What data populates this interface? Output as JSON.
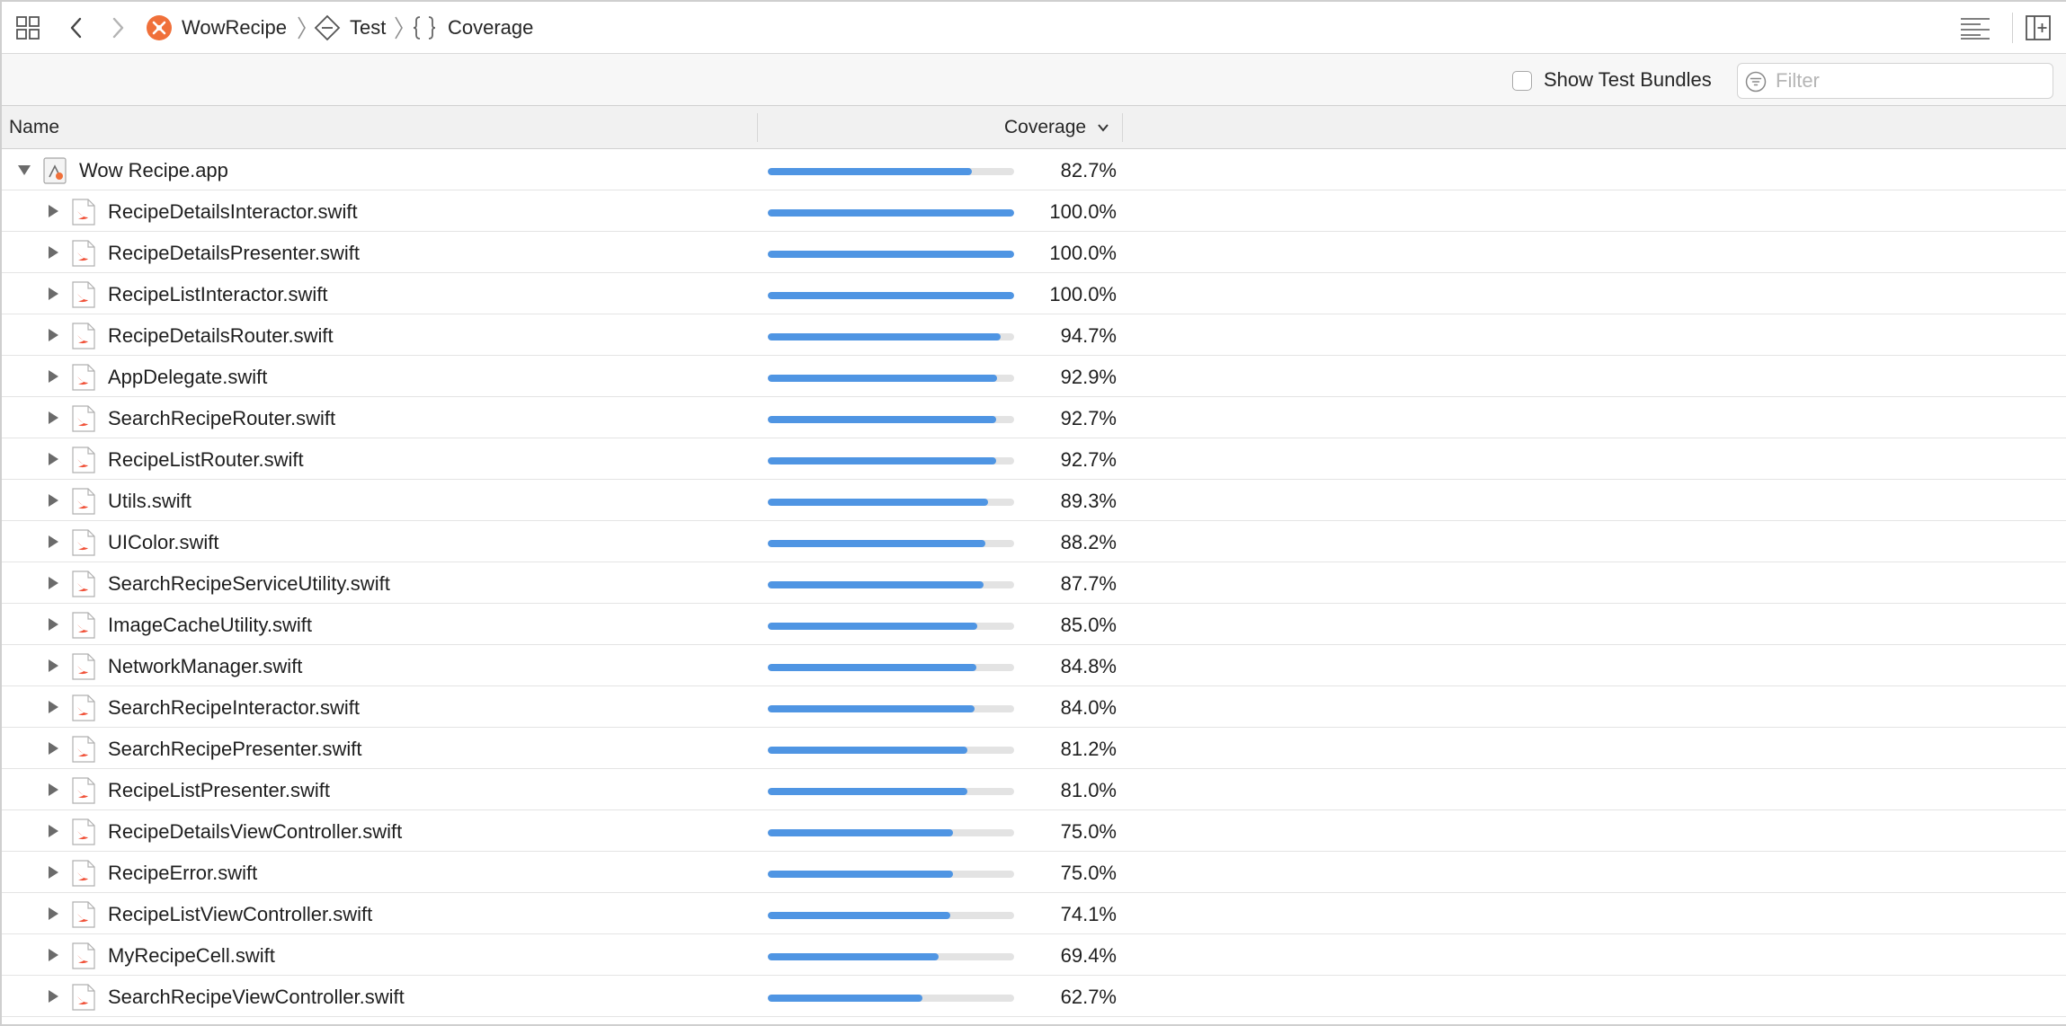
{
  "breadcrumb": {
    "project": "WowRecipe",
    "scheme": "Test",
    "report": "Coverage"
  },
  "filterbar": {
    "show_test_bundles_label": "Show Test Bundles",
    "show_test_bundles_checked": false,
    "filter_placeholder": "Filter"
  },
  "table": {
    "columns": {
      "name": "Name",
      "coverage": "Coverage"
    },
    "target": {
      "name": "Wow Recipe.app",
      "coverage": "82.7%",
      "fraction": 0.827
    },
    "files": [
      {
        "name": "RecipeDetailsInteractor.swift",
        "coverage": "100.0%",
        "fraction": 1.0
      },
      {
        "name": "RecipeDetailsPresenter.swift",
        "coverage": "100.0%",
        "fraction": 1.0
      },
      {
        "name": "RecipeListInteractor.swift",
        "coverage": "100.0%",
        "fraction": 1.0
      },
      {
        "name": "RecipeDetailsRouter.swift",
        "coverage": "94.7%",
        "fraction": 0.947
      },
      {
        "name": "AppDelegate.swift",
        "coverage": "92.9%",
        "fraction": 0.929
      },
      {
        "name": "SearchRecipeRouter.swift",
        "coverage": "92.7%",
        "fraction": 0.927
      },
      {
        "name": "RecipeListRouter.swift",
        "coverage": "92.7%",
        "fraction": 0.927
      },
      {
        "name": "Utils.swift",
        "coverage": "89.3%",
        "fraction": 0.893
      },
      {
        "name": "UIColor.swift",
        "coverage": "88.2%",
        "fraction": 0.882
      },
      {
        "name": "SearchRecipeServiceUtility.swift",
        "coverage": "87.7%",
        "fraction": 0.877
      },
      {
        "name": "ImageCacheUtility.swift",
        "coverage": "85.0%",
        "fraction": 0.85
      },
      {
        "name": "NetworkManager.swift",
        "coverage": "84.8%",
        "fraction": 0.848
      },
      {
        "name": "SearchRecipeInteractor.swift",
        "coverage": "84.0%",
        "fraction": 0.84
      },
      {
        "name": "SearchRecipePresenter.swift",
        "coverage": "81.2%",
        "fraction": 0.812
      },
      {
        "name": "RecipeListPresenter.swift",
        "coverage": "81.0%",
        "fraction": 0.81
      },
      {
        "name": "RecipeDetailsViewController.swift",
        "coverage": "75.0%",
        "fraction": 0.75
      },
      {
        "name": "RecipeError.swift",
        "coverage": "75.0%",
        "fraction": 0.75
      },
      {
        "name": "RecipeListViewController.swift",
        "coverage": "74.1%",
        "fraction": 0.741
      },
      {
        "name": "MyRecipeCell.swift",
        "coverage": "69.4%",
        "fraction": 0.694
      },
      {
        "name": "SearchRecipeViewController.swift",
        "coverage": "62.7%",
        "fraction": 0.627
      }
    ]
  },
  "colors": {
    "bar_fill": "#4f95e3",
    "bar_track": "#e3e3e3",
    "swift_orange": "#f05138",
    "app_orange": "#f0703a"
  }
}
